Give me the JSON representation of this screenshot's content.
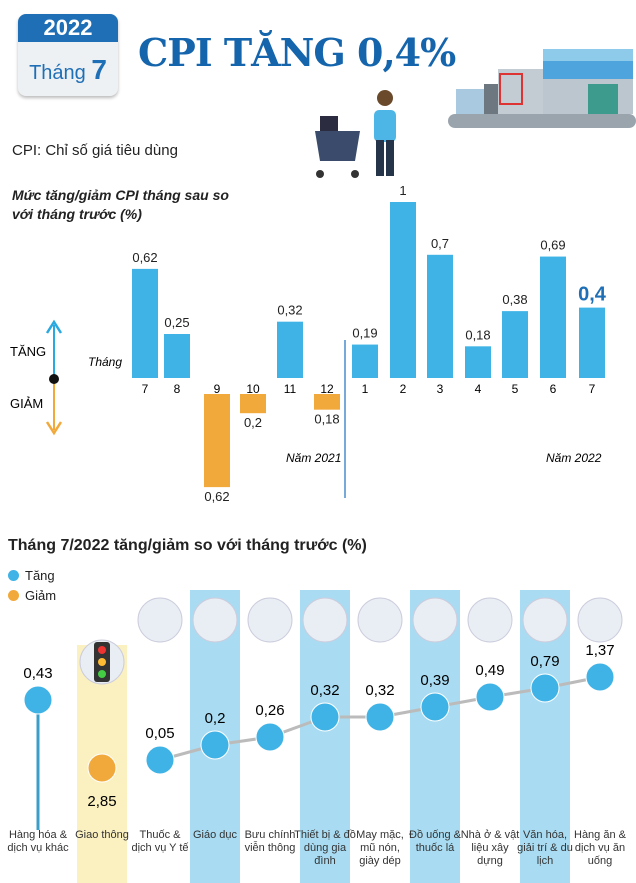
{
  "header": {
    "year": "2022",
    "month_label": "Tháng",
    "month": "7",
    "title": "CPI TĂNG 0,4%",
    "subtitle": "CPI: Chỉ số giá tiêu dùng"
  },
  "colors": {
    "increase": "#3fb3e6",
    "decrease": "#f2a93b",
    "title": "#1565ad",
    "highlight_col": "#a9dcf2",
    "highlight_yellow": "#fbf0c0"
  },
  "chart_data": [
    {
      "type": "bar",
      "title": "Mức tăng/giảm CPI tháng sau so với tháng trước (%)",
      "xlabel": "Tháng",
      "categories": [
        "7",
        "8",
        "9",
        "10",
        "11",
        "12",
        "1",
        "2",
        "3",
        "4",
        "5",
        "6",
        "7"
      ],
      "values": [
        0.62,
        0.25,
        -0.62,
        -0.2,
        0.32,
        -0.18,
        0.19,
        1,
        0.7,
        0.18,
        0.38,
        0.69,
        0.4
      ],
      "labels": [
        "0,62",
        "0,25",
        "0,62",
        "0,2",
        "0,32",
        "0,18",
        "0,19",
        "1",
        "0,7",
        "0,18",
        "0,38",
        "0,69",
        "0,4"
      ],
      "year_groups": [
        "Năm 2021",
        "Năm 2022"
      ],
      "legend": {
        "up": "TĂNG",
        "down": "GIẢM"
      }
    },
    {
      "type": "scatter",
      "title": "Tháng 7/2022 tăng/giảm so với tháng trước (%)",
      "legend": [
        "Tăng",
        "Giảm"
      ],
      "categories": [
        "Hàng hóa & dịch vụ khác",
        "Giao thông",
        "Thuốc & dịch vụ Y tế",
        "Giáo dục",
        "Bưu chính viễn thông",
        "Thiết bị & đồ dùng gia đình",
        "May mặc, mũ nón, giày dép",
        "Đồ uống & thuốc lá",
        "Nhà ở & vật liệu xây dựng",
        "Văn hóa, giải trí & du lịch",
        "Hàng ăn & dịch vụ ăn uống"
      ],
      "values": [
        0.43,
        -2.85,
        0.05,
        0.2,
        0.26,
        0.32,
        0.32,
        0.39,
        0.49,
        0.79,
        1.37
      ],
      "labels": [
        "0,43",
        "2,85",
        "0,05",
        "0,2",
        "0,26",
        "0,32",
        "0,32",
        "0,39",
        "0,49",
        "0,79",
        "1,37"
      ],
      "icons": [
        "",
        "traffic-light-icon",
        "medicine-icon",
        "graduation-cap-icon",
        "antenna-icon",
        "washing-machine-icon",
        "shoes-icon",
        "drinks-icon",
        "house-icon",
        "film-icon",
        "food-icon"
      ]
    }
  ]
}
